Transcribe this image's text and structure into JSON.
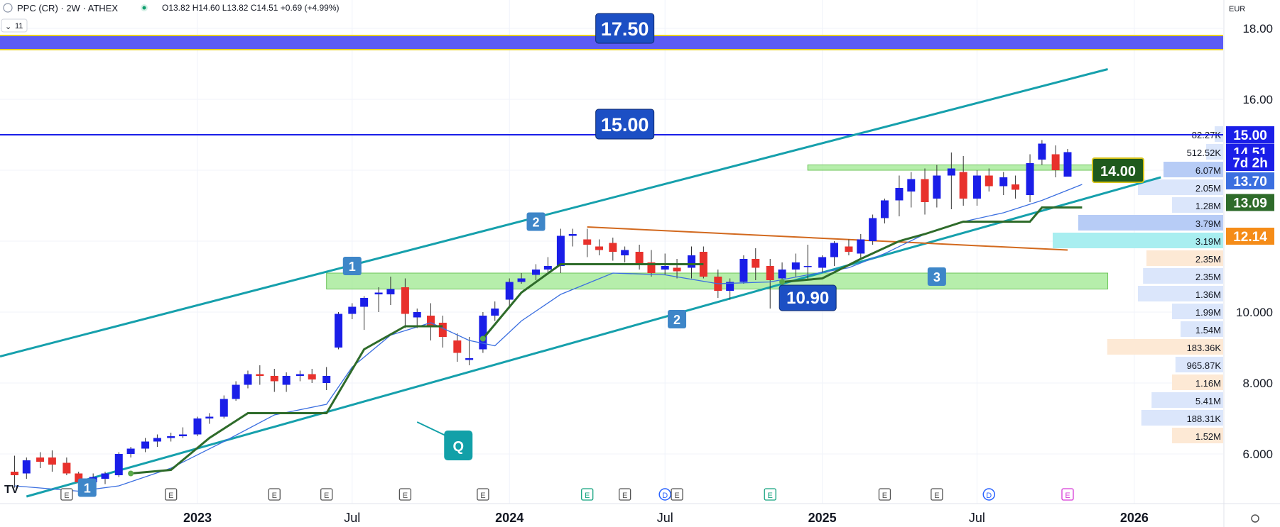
{
  "header": {
    "symbol": "PPC (CR) · 2W · ATHEX",
    "ohlc": "O13.82 H14.60 L13.82 C14.51 +0.69 (+4.99%)",
    "interval_badge": "11",
    "currency": "EUR"
  },
  "colors": {
    "up": "#1a1ee8",
    "down": "#e8312c",
    "channel": "#16a0ac",
    "zone": "#9ee88f",
    "level_line": "#1a1ee8",
    "band_fill": "#5b5bf5",
    "trail": "#2e6b2a",
    "ema": "#3b6fe0",
    "flag_orange": "#f5a020",
    "resistance": "#d2691e"
  },
  "chart_data": {
    "type": "candlestick",
    "title": "",
    "xlabel": "",
    "ylabel": "",
    "ylim": [
      4.6,
      18.8
    ],
    "y_ticks": [
      6.0,
      8.0,
      10.0,
      12.0,
      14.0,
      16.0,
      18.0
    ],
    "y_tick_labels": [
      "6.000",
      "8.000",
      "10.000",
      "",
      "",
      "16.00",
      "18.00"
    ],
    "x_labels": [
      "2023",
      "Jul",
      "2024",
      "Jul",
      "2025",
      "Jul",
      "2026"
    ],
    "x_label_dates": [
      "2023-01-01",
      "2023-07-01",
      "2024-01-01",
      "2024-07-01",
      "2025-01-01",
      "2025-07-01",
      "2026-01-01"
    ],
    "x_range": [
      "2022-05-15",
      "2026-04-15"
    ],
    "candles": [
      {
        "t": "2022-06-01",
        "o": 5.5,
        "h": 5.95,
        "l": 5.05,
        "c": 5.4
      },
      {
        "t": "2022-06-15",
        "o": 5.45,
        "h": 5.9,
        "l": 5.3,
        "c": 5.82
      },
      {
        "t": "2022-07-01",
        "o": 5.9,
        "h": 6.05,
        "l": 5.6,
        "c": 5.78
      },
      {
        "t": "2022-07-15",
        "o": 5.9,
        "h": 6.1,
        "l": 5.5,
        "c": 5.7
      },
      {
        "t": "2022-08-01",
        "o": 5.75,
        "h": 5.9,
        "l": 5.4,
        "c": 5.45
      },
      {
        "t": "2022-08-15",
        "o": 5.45,
        "h": 5.5,
        "l": 5.1,
        "c": 5.2
      },
      {
        "t": "2022-09-01",
        "o": 5.2,
        "h": 5.45,
        "l": 5.1,
        "c": 5.35
      },
      {
        "t": "2022-09-15",
        "o": 5.3,
        "h": 5.5,
        "l": 5.15,
        "c": 5.45
      },
      {
        "t": "2022-10-01",
        "o": 5.4,
        "h": 6.05,
        "l": 5.35,
        "c": 6.0
      },
      {
        "t": "2022-10-15",
        "o": 6.0,
        "h": 6.2,
        "l": 5.9,
        "c": 6.15
      },
      {
        "t": "2022-11-01",
        "o": 6.15,
        "h": 6.45,
        "l": 6.05,
        "c": 6.35
      },
      {
        "t": "2022-11-15",
        "o": 6.35,
        "h": 6.55,
        "l": 6.2,
        "c": 6.45
      },
      {
        "t": "2022-12-01",
        "o": 6.45,
        "h": 6.6,
        "l": 6.35,
        "c": 6.5
      },
      {
        "t": "2022-12-15",
        "o": 6.5,
        "h": 6.75,
        "l": 6.45,
        "c": 6.55
      },
      {
        "t": "2023-01-01",
        "o": 6.55,
        "h": 7.05,
        "l": 6.5,
        "c": 7.0
      },
      {
        "t": "2023-01-15",
        "o": 7.0,
        "h": 7.15,
        "l": 6.85,
        "c": 7.05
      },
      {
        "t": "2023-02-01",
        "o": 7.05,
        "h": 7.65,
        "l": 7.0,
        "c": 7.55
      },
      {
        "t": "2023-02-15",
        "o": 7.55,
        "h": 8.05,
        "l": 7.5,
        "c": 7.95
      },
      {
        "t": "2023-03-01",
        "o": 7.95,
        "h": 8.35,
        "l": 7.85,
        "c": 8.25
      },
      {
        "t": "2023-03-15",
        "o": 8.25,
        "h": 8.5,
        "l": 7.95,
        "c": 8.2
      },
      {
        "t": "2023-04-01",
        "o": 8.2,
        "h": 8.4,
        "l": 7.75,
        "c": 8.05
      },
      {
        "t": "2023-04-15",
        "o": 7.95,
        "h": 8.3,
        "l": 7.75,
        "c": 8.2
      },
      {
        "t": "2023-05-01",
        "o": 8.2,
        "h": 8.35,
        "l": 8.05,
        "c": 8.25
      },
      {
        "t": "2023-05-15",
        "o": 8.25,
        "h": 8.4,
        "l": 8.0,
        "c": 8.1
      },
      {
        "t": "2023-06-01",
        "o": 8.0,
        "h": 8.45,
        "l": 7.8,
        "c": 8.2
      },
      {
        "t": "2023-06-15",
        "o": 9.0,
        "h": 10.0,
        "l": 8.95,
        "c": 9.95
      },
      {
        "t": "2023-07-01",
        "o": 9.95,
        "h": 10.25,
        "l": 9.8,
        "c": 10.15
      },
      {
        "t": "2023-07-15",
        "o": 10.15,
        "h": 10.45,
        "l": 9.5,
        "c": 10.4
      },
      {
        "t": "2023-08-01",
        "o": 10.5,
        "h": 10.7,
        "l": 10.0,
        "c": 10.55
      },
      {
        "t": "2023-08-15",
        "o": 10.5,
        "h": 11.0,
        "l": 10.2,
        "c": 10.65
      },
      {
        "t": "2023-09-01",
        "o": 10.7,
        "h": 10.95,
        "l": 9.55,
        "c": 9.95
      },
      {
        "t": "2023-09-15",
        "o": 9.85,
        "h": 10.1,
        "l": 9.55,
        "c": 10.0
      },
      {
        "t": "2023-10-01",
        "o": 9.9,
        "h": 10.25,
        "l": 9.2,
        "c": 9.6
      },
      {
        "t": "2023-10-15",
        "o": 9.7,
        "h": 9.9,
        "l": 9.0,
        "c": 9.3
      },
      {
        "t": "2023-11-01",
        "o": 9.2,
        "h": 9.4,
        "l": 8.6,
        "c": 8.85
      },
      {
        "t": "2023-11-15",
        "o": 8.65,
        "h": 9.3,
        "l": 8.5,
        "c": 8.7
      },
      {
        "t": "2023-12-01",
        "o": 8.95,
        "h": 10.0,
        "l": 8.85,
        "c": 9.9
      },
      {
        "t": "2023-12-15",
        "o": 9.9,
        "h": 10.3,
        "l": 9.75,
        "c": 10.1
      },
      {
        "t": "2024-01-01",
        "o": 10.35,
        "h": 10.95,
        "l": 10.1,
        "c": 10.85
      },
      {
        "t": "2024-01-15",
        "o": 10.85,
        "h": 11.1,
        "l": 10.8,
        "c": 10.95
      },
      {
        "t": "2024-02-01",
        "o": 11.05,
        "h": 11.35,
        "l": 10.9,
        "c": 11.2
      },
      {
        "t": "2024-02-15",
        "o": 11.2,
        "h": 11.55,
        "l": 11.1,
        "c": 11.3
      },
      {
        "t": "2024-03-01",
        "o": 11.3,
        "h": 12.35,
        "l": 11.1,
        "c": 12.15
      },
      {
        "t": "2024-03-15",
        "o": 12.15,
        "h": 12.35,
        "l": 11.85,
        "c": 12.2
      },
      {
        "t": "2024-04-01",
        "o": 12.05,
        "h": 12.35,
        "l": 11.55,
        "c": 11.9
      },
      {
        "t": "2024-04-15",
        "o": 11.85,
        "h": 12.05,
        "l": 11.6,
        "c": 11.75
      },
      {
        "t": "2024-05-01",
        "o": 11.95,
        "h": 12.1,
        "l": 11.45,
        "c": 11.7
      },
      {
        "t": "2024-05-15",
        "o": 11.6,
        "h": 11.85,
        "l": 11.4,
        "c": 11.75
      },
      {
        "t": "2024-06-01",
        "o": 11.7,
        "h": 11.9,
        "l": 11.2,
        "c": 11.35
      },
      {
        "t": "2024-06-15",
        "o": 11.4,
        "h": 11.75,
        "l": 11.0,
        "c": 11.1
      },
      {
        "t": "2024-07-01",
        "o": 11.2,
        "h": 11.65,
        "l": 11.05,
        "c": 11.3
      },
      {
        "t": "2024-07-15",
        "o": 11.25,
        "h": 11.5,
        "l": 10.95,
        "c": 11.15
      },
      {
        "t": "2024-08-01",
        "o": 11.25,
        "h": 11.85,
        "l": 10.95,
        "c": 11.6
      },
      {
        "t": "2024-08-15",
        "o": 11.7,
        "h": 11.85,
        "l": 10.95,
        "c": 11.0
      },
      {
        "t": "2024-09-01",
        "o": 11.0,
        "h": 11.2,
        "l": 10.4,
        "c": 10.6
      },
      {
        "t": "2024-09-15",
        "o": 10.6,
        "h": 10.95,
        "l": 10.35,
        "c": 10.85
      },
      {
        "t": "2024-10-01",
        "o": 10.85,
        "h": 11.6,
        "l": 10.8,
        "c": 11.5
      },
      {
        "t": "2024-10-15",
        "o": 11.5,
        "h": 11.8,
        "l": 10.9,
        "c": 11.25
      },
      {
        "t": "2024-11-01",
        "o": 11.3,
        "h": 11.5,
        "l": 10.1,
        "c": 10.9
      },
      {
        "t": "2024-11-15",
        "o": 10.95,
        "h": 11.4,
        "l": 10.8,
        "c": 11.2
      },
      {
        "t": "2024-12-01",
        "o": 11.2,
        "h": 11.65,
        "l": 11.0,
        "c": 11.4
      },
      {
        "t": "2024-12-15",
        "o": 11.3,
        "h": 11.9,
        "l": 10.9,
        "c": 11.3
      },
      {
        "t": "2025-01-01",
        "o": 11.25,
        "h": 11.6,
        "l": 11.1,
        "c": 11.55
      },
      {
        "t": "2025-01-15",
        "o": 11.55,
        "h": 12.0,
        "l": 11.3,
        "c": 11.95
      },
      {
        "t": "2025-02-01",
        "o": 11.85,
        "h": 12.05,
        "l": 11.6,
        "c": 11.7
      },
      {
        "t": "2025-02-15",
        "o": 11.65,
        "h": 12.2,
        "l": 11.5,
        "c": 12.05
      },
      {
        "t": "2025-03-01",
        "o": 12.0,
        "h": 12.75,
        "l": 11.9,
        "c": 12.65
      },
      {
        "t": "2025-03-15",
        "o": 12.65,
        "h": 13.2,
        "l": 12.5,
        "c": 13.15
      },
      {
        "t": "2025-04-01",
        "o": 13.15,
        "h": 13.85,
        "l": 12.7,
        "c": 13.5
      },
      {
        "t": "2025-04-15",
        "o": 13.4,
        "h": 13.95,
        "l": 12.95,
        "c": 13.75
      },
      {
        "t": "2025-05-01",
        "o": 13.75,
        "h": 14.05,
        "l": 12.75,
        "c": 13.1
      },
      {
        "t": "2025-05-15",
        "o": 13.2,
        "h": 14.15,
        "l": 12.95,
        "c": 13.85
      },
      {
        "t": "2025-06-01",
        "o": 13.85,
        "h": 14.5,
        "l": 12.9,
        "c": 14.05
      },
      {
        "t": "2025-06-15",
        "o": 13.95,
        "h": 14.4,
        "l": 13.0,
        "c": 13.2
      },
      {
        "t": "2025-07-01",
        "o": 13.2,
        "h": 14.0,
        "l": 13.0,
        "c": 13.85
      },
      {
        "t": "2025-07-15",
        "o": 13.85,
        "h": 14.05,
        "l": 13.4,
        "c": 13.55
      },
      {
        "t": "2025-08-01",
        "o": 13.55,
        "h": 13.95,
        "l": 13.3,
        "c": 13.8
      },
      {
        "t": "2025-08-15",
        "o": 13.6,
        "h": 13.85,
        "l": 13.2,
        "c": 13.45
      },
      {
        "t": "2025-09-01",
        "o": 13.3,
        "h": 14.45,
        "l": 13.1,
        "c": 14.2
      },
      {
        "t": "2025-09-15",
        "o": 14.3,
        "h": 14.85,
        "l": 14.15,
        "c": 14.75
      },
      {
        "t": "2025-10-01",
        "o": 14.45,
        "h": 14.7,
        "l": 13.8,
        "c": 14.0
      },
      {
        "t": "2025-10-15",
        "o": 13.82,
        "h": 14.6,
        "l": 13.82,
        "c": 14.51
      }
    ],
    "ema": [
      [
        "2022-06-01",
        5.1
      ],
      [
        "2022-08-15",
        4.95
      ],
      [
        "2022-10-01",
        5.1
      ],
      [
        "2022-12-01",
        5.6
      ],
      [
        "2023-02-01",
        6.35
      ],
      [
        "2023-04-01",
        7.1
      ],
      [
        "2023-06-01",
        7.4
      ],
      [
        "2023-07-01",
        8.45
      ],
      [
        "2023-08-15",
        9.35
      ],
      [
        "2023-10-01",
        9.7
      ],
      [
        "2023-11-15",
        9.2
      ],
      [
        "2023-12-15",
        9.05
      ],
      [
        "2024-01-15",
        9.75
      ],
      [
        "2024-03-01",
        10.5
      ],
      [
        "2024-05-01",
        11.1
      ],
      [
        "2024-07-01",
        11.05
      ],
      [
        "2024-09-01",
        10.8
      ],
      [
        "2024-11-01",
        10.85
      ],
      [
        "2024-12-15",
        11.05
      ],
      [
        "2025-02-01",
        11.25
      ],
      [
        "2025-03-15",
        11.65
      ],
      [
        "2025-05-01",
        12.2
      ],
      [
        "2025-06-15",
        12.55
      ],
      [
        "2025-08-01",
        12.8
      ],
      [
        "2025-09-15",
        13.15
      ],
      [
        "2025-11-01",
        13.6
      ]
    ],
    "trail": [
      [
        [
          "2022-10-15",
          5.45
        ],
        [
          "2022-12-01",
          5.55
        ],
        [
          "2023-01-15",
          6.45
        ],
        [
          "2023-03-01",
          7.15
        ],
        [
          "2023-06-01",
          7.15
        ],
        [
          "2023-07-15",
          8.95
        ],
        [
          "2023-09-01",
          9.6
        ],
        [
          "2023-10-15",
          9.6
        ]
      ],
      [
        [
          "2023-12-01",
          9.25
        ],
        [
          "2024-01-15",
          10.55
        ],
        [
          "2024-03-01",
          11.35
        ],
        [
          "2024-05-01",
          11.35
        ],
        [
          "2024-08-15",
          11.35
        ]
      ],
      [
        [
          "2024-11-15",
          10.85
        ],
        [
          "2025-01-01",
          10.95
        ],
        [
          "2025-02-15",
          11.5
        ],
        [
          "2025-04-01",
          12.0
        ],
        [
          "2025-05-01",
          12.2
        ],
        [
          "2025-06-15",
          12.55
        ],
        [
          "2025-09-01",
          12.55
        ],
        [
          "2025-09-15",
          12.95
        ],
        [
          "2025-11-01",
          12.95
        ]
      ]
    ],
    "channel": {
      "upper": [
        [
          "2022-05-15",
          8.75
        ],
        [
          "2025-12-01",
          16.85
        ]
      ],
      "lower": [
        [
          "2022-06-15",
          4.8
        ],
        [
          "2026-02-01",
          13.8
        ]
      ]
    },
    "resistance_line": [
      [
        "2024-04-01",
        12.4
      ],
      [
        "2025-10-15",
        11.75
      ]
    ],
    "zones": [
      {
        "from": "2023-06-01",
        "to": "2025-12-01",
        "low": 10.65,
        "high": 11.1
      },
      {
        "from": "2024-12-15",
        "to": "2025-12-01",
        "low": 14.0,
        "high": 14.15
      }
    ],
    "levels": [
      {
        "value": 15.0,
        "label": "15.00"
      },
      {
        "value": 17.5,
        "label": "17.50"
      }
    ],
    "band": {
      "low": 17.4,
      "high": 17.8
    },
    "annotations": [
      {
        "text": "1",
        "t": "2022-08-25",
        "y": 5.05
      },
      {
        "text": "1",
        "t": "2023-07-01",
        "y": 11.3
      },
      {
        "text": "2",
        "t": "2024-02-01",
        "y": 12.55
      },
      {
        "text": "2",
        "t": "2024-07-15",
        "y": 9.8
      },
      {
        "text": "3",
        "t": "2025-05-15",
        "y": 11.0
      },
      {
        "text": "10.90",
        "t": "2024-12-15",
        "y": 10.4
      },
      {
        "text": "Q",
        "t": "2023-09-15",
        "y": 6.9
      }
    ],
    "level_tags": [
      {
        "text": "17.50",
        "t": "2024-05-15",
        "y": 18.0
      },
      {
        "text": "15.00",
        "t": "2024-05-15",
        "y": 15.3
      }
    ],
    "price_tags": [
      {
        "text": "15.00",
        "y": 15.0,
        "color": "#1a1ee8"
      },
      {
        "text": "14.51",
        "y": 14.51,
        "color": "#1a1ee8"
      },
      {
        "text": "7d 2h",
        "y": 14.22,
        "color": "#1a1ee8"
      },
      {
        "text": "13.70",
        "y": 13.7,
        "color": "#3b6fe0"
      },
      {
        "text": "13.09",
        "y": 13.09,
        "color": "#2e6b2a"
      },
      {
        "text": "12.14",
        "y": 12.14,
        "color": "#f58c18"
      }
    ],
    "mark_14": {
      "text": "14.00",
      "y": 14.0
    },
    "volume_profile": [
      {
        "label": "82.27K",
        "y": 15.0,
        "value": 0.05,
        "color": "#dbe6fb"
      },
      {
        "label": "512.52K",
        "y": 14.5,
        "value": 0.1,
        "color": "#dbe6fb"
      },
      {
        "label": "6.07M",
        "y": 14.0,
        "value": 0.35,
        "color": "#b7ccf6"
      },
      {
        "label": "2.05M",
        "y": 13.5,
        "value": 0.5,
        "color": "#dbe6fb"
      },
      {
        "label": "1.28M",
        "y": 13.0,
        "value": 0.3,
        "color": "#dbe6fb"
      },
      {
        "label": "3.79M",
        "y": 12.5,
        "value": 0.85,
        "color": "#b7ccf6"
      },
      {
        "label": "3.19M",
        "y": 12.0,
        "value": 1.0,
        "color": "#a8eef0"
      },
      {
        "label": "2.35M",
        "y": 11.5,
        "value": 0.45,
        "color": "#fde9d5"
      },
      {
        "label": "2.35M",
        "y": 11.0,
        "value": 0.47,
        "color": "#dbe6fb"
      },
      {
        "label": "1.36M",
        "y": 10.5,
        "value": 0.5,
        "color": "#dbe6fb"
      },
      {
        "label": "1.99M",
        "y": 10.0,
        "value": 0.3,
        "color": "#dbe6fb"
      },
      {
        "label": "1.54M",
        "y": 9.5,
        "value": 0.25,
        "color": "#dbe6fb"
      },
      {
        "label": "183.36K",
        "y": 9.0,
        "value": 0.68,
        "color": "#fde9d5"
      },
      {
        "label": "965.87K",
        "y": 8.5,
        "value": 0.28,
        "color": "#dbe6fb"
      },
      {
        "label": "1.16M",
        "y": 8.0,
        "value": 0.3,
        "color": "#fde9d5"
      },
      {
        "label": "5.41M",
        "y": 7.5,
        "value": 0.42,
        "color": "#dbe6fb"
      },
      {
        "label": "188.31K",
        "y": 7.0,
        "value": 0.48,
        "color": "#dbe6fb"
      },
      {
        "label": "1.52M",
        "y": 6.5,
        "value": 0.3,
        "color": "#fde9d5"
      }
    ],
    "events": [
      {
        "t": "2022-08-01",
        "text": "E"
      },
      {
        "t": "2022-12-01",
        "text": "E"
      },
      {
        "t": "2023-04-01",
        "text": "E"
      },
      {
        "t": "2023-06-01",
        "text": "E"
      },
      {
        "t": "2023-09-01",
        "text": "E"
      },
      {
        "t": "2023-12-01",
        "text": "E"
      },
      {
        "t": "2024-04-01",
        "text": "E",
        "kind": "teal"
      },
      {
        "t": "2024-05-15",
        "text": "E"
      },
      {
        "t": "2024-07-01",
        "text": "D",
        "kind": "blue"
      },
      {
        "t": "2024-07-15",
        "text": "E"
      },
      {
        "t": "2024-11-01",
        "text": "E",
        "kind": "teal"
      },
      {
        "t": "2025-03-15",
        "text": "E"
      },
      {
        "t": "2025-05-15",
        "text": "E"
      },
      {
        "t": "2025-07-15",
        "text": "D",
        "kind": "blue"
      },
      {
        "t": "2025-10-15",
        "text": "E",
        "kind": "magenta"
      }
    ]
  }
}
